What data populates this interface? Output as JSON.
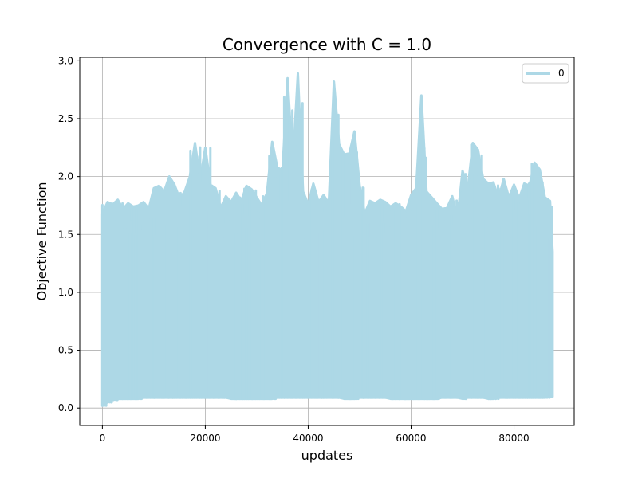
{
  "chart_data": {
    "type": "line",
    "title": "Convergence with C = 1.0",
    "xlabel": "updates",
    "ylabel": "Objective Function",
    "xlim": [
      -4400,
      91700
    ],
    "ylim": [
      -0.15,
      3.03
    ],
    "xticks": [
      0,
      20000,
      40000,
      60000,
      80000
    ],
    "yticks": [
      0.0,
      0.5,
      1.0,
      1.5,
      2.0,
      2.5,
      3.0
    ],
    "xtick_labels": [
      "0",
      "20000",
      "40000",
      "60000",
      "80000"
    ],
    "ytick_labels": [
      "0.0",
      "0.5",
      "1.0",
      "1.5",
      "2.0",
      "2.5",
      "3.0"
    ],
    "grid": true,
    "legend_position": "top-right",
    "color": "#add8e6",
    "series": [
      {
        "name": "0",
        "x_range": [
          0,
          87500
        ],
        "envelope_x": [
          0,
          1000,
          2000,
          3000,
          4000,
          5000,
          6000,
          7000,
          8000,
          9000,
          10000,
          11000,
          12000,
          13000,
          14000,
          15000,
          16000,
          17000,
          18000,
          19000,
          20000,
          21000,
          22000,
          23000,
          24000,
          25000,
          26000,
          27000,
          28000,
          29000,
          30000,
          31000,
          32000,
          33000,
          34000,
          35000,
          36000,
          37000,
          38000,
          39000,
          40000,
          41000,
          42000,
          43000,
          44000,
          45000,
          46000,
          47000,
          48000,
          49000,
          50000,
          51000,
          52000,
          53000,
          54000,
          55000,
          56000,
          57000,
          58000,
          59000,
          60000,
          61000,
          62000,
          63000,
          64000,
          65000,
          66000,
          67000,
          68000,
          69000,
          70000,
          71000,
          72000,
          73000,
          74000,
          75000,
          76000,
          77000,
          78000,
          79000,
          80000,
          81000,
          82000,
          83000,
          84000,
          85000,
          86000,
          87000,
          87500
        ],
        "upper": [
          1.68,
          1.78,
          1.76,
          1.8,
          1.72,
          1.77,
          1.74,
          1.75,
          1.78,
          1.72,
          1.9,
          1.92,
          1.87,
          2.0,
          1.93,
          1.81,
          1.87,
          2.0,
          2.29,
          1.97,
          2.25,
          1.93,
          1.9,
          1.73,
          1.83,
          1.78,
          1.86,
          1.79,
          1.92,
          1.89,
          1.82,
          1.75,
          1.86,
          2.3,
          2.08,
          2.05,
          2.85,
          2.1,
          2.89,
          1.87,
          1.76,
          1.94,
          1.78,
          1.84,
          1.77,
          2.82,
          2.28,
          2.19,
          2.2,
          2.39,
          1.92,
          1.68,
          1.79,
          1.77,
          1.8,
          1.78,
          1.74,
          1.77,
          1.74,
          1.7,
          1.84,
          1.9,
          2.7,
          1.87,
          1.82,
          1.77,
          1.72,
          1.73,
          1.83,
          1.63,
          2.05,
          1.89,
          2.29,
          2.23,
          1.98,
          1.94,
          1.95,
          1.81,
          1.98,
          1.82,
          1.93,
          1.81,
          1.94,
          1.92,
          2.12,
          2.06,
          1.82,
          1.79,
          1.35
        ],
        "lower": [
          0.02,
          0.05,
          0.07,
          0.08,
          0.08,
          0.08,
          0.08,
          0.08,
          0.09,
          0.09,
          0.09,
          0.09,
          0.09,
          0.09,
          0.09,
          0.09,
          0.09,
          0.09,
          0.09,
          0.09,
          0.09,
          0.09,
          0.09,
          0.09,
          0.09,
          0.08,
          0.08,
          0.08,
          0.08,
          0.08,
          0.08,
          0.08,
          0.08,
          0.08,
          0.09,
          0.09,
          0.09,
          0.09,
          0.09,
          0.09,
          0.09,
          0.09,
          0.09,
          0.09,
          0.09,
          0.09,
          0.09,
          0.08,
          0.08,
          0.08,
          0.09,
          0.09,
          0.09,
          0.09,
          0.09,
          0.09,
          0.08,
          0.08,
          0.08,
          0.08,
          0.08,
          0.08,
          0.08,
          0.08,
          0.08,
          0.08,
          0.09,
          0.09,
          0.09,
          0.09,
          0.08,
          0.09,
          0.09,
          0.09,
          0.09,
          0.08,
          0.08,
          0.09,
          0.09,
          0.09,
          0.09,
          0.09,
          0.09,
          0.09,
          0.09,
          0.09,
          0.09,
          0.1,
          0.1
        ]
      }
    ]
  }
}
